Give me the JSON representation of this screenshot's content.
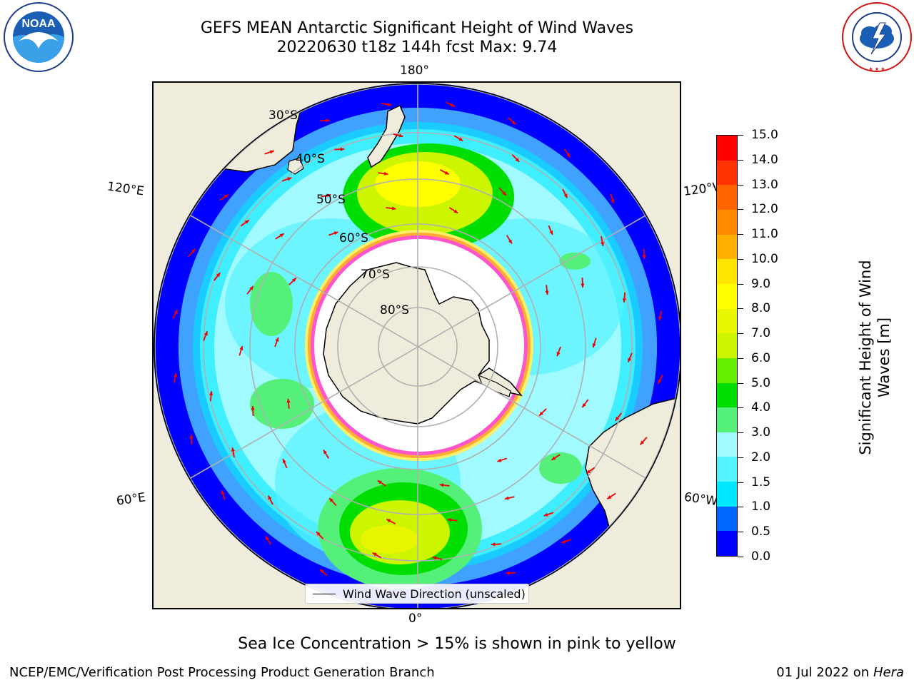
{
  "title": {
    "line1": "GEFS MEAN Antarctic Significant Height of Wind Waves",
    "line2": "20220630 t18z 144h fcst   Max: 9.74"
  },
  "logos": {
    "left": {
      "name": "noaa-logo",
      "text": "NOAA",
      "ring_text": "NATIONAL OCEANIC AND ATMOSPHERIC ADMINISTRATION · U.S. DEPARTMENT OF COMMERCE"
    },
    "right": {
      "name": "nws-logo",
      "ring_text": "NATIONAL WEATHER SERVICE"
    }
  },
  "map": {
    "projection": "south-polar-stereographic",
    "longitude_labels": {
      "top": "180°",
      "bottom": "0°",
      "upper_left": "120°E",
      "upper_right": "120°W",
      "lower_left": "60°E",
      "lower_right": "60°W"
    },
    "latitude_labels": [
      "30°S",
      "40°S",
      "50°S",
      "60°S",
      "70°S",
      "80°S"
    ],
    "legend": "Wind Wave Direction (unscaled)",
    "land_color": "#efecdc",
    "ice_edge_colors": [
      "#ff55cc",
      "#ffaa33",
      "#ffee66"
    ],
    "arrow_color": "#ee0000"
  },
  "colorbar": {
    "label_line1": "Significant Height of Wind",
    "label_line2": "Waves [m]",
    "ticks": [
      "0.0",
      "0.5",
      "1.0",
      "1.5",
      "2.0",
      "3.0",
      "4.0",
      "5.0",
      "6.0",
      "7.0",
      "8.0",
      "9.0",
      "10.0",
      "11.0",
      "12.0",
      "13.0",
      "14.0",
      "15.0"
    ],
    "colors": [
      "#0000ff",
      "#0066ff",
      "#00e8ff",
      "#55f2ff",
      "#a0faff",
      "#55f07a",
      "#00dd00",
      "#66ee00",
      "#ccf500",
      "#e8f500",
      "#ffff00",
      "#ffe600",
      "#ffb000",
      "#ff8c00",
      "#ff6400",
      "#ff3200",
      "#ff0000"
    ]
  },
  "caption": "Sea Ice Concentration > 15% is shown in pink to yellow",
  "footer": {
    "left": "NCEP/EMC/Verification Post Processing Product Generation Branch",
    "right_date": "01 Jul 2022 on ",
    "right_machine": "Hera"
  }
}
